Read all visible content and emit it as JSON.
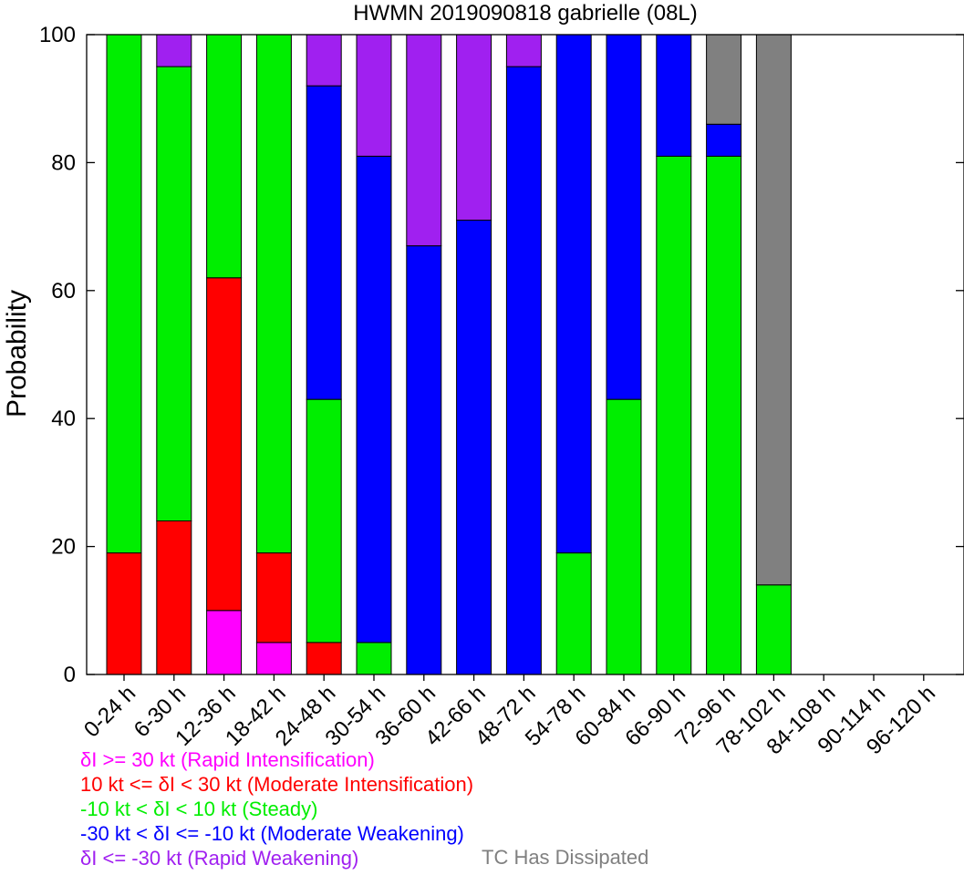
{
  "chart_data": {
    "type": "bar",
    "stacked": true,
    "title": "HWMN 2019090818 gabrielle (08L)",
    "xlabel": "",
    "ylabel": "Probability",
    "ylim": [
      0,
      100
    ],
    "yticks": [
      0,
      20,
      40,
      60,
      80,
      100
    ],
    "grid": false,
    "categories": [
      "0-24 h",
      "6-30 h",
      "12-36 h",
      "18-42 h",
      "24-48 h",
      "30-54 h",
      "36-60 h",
      "42-66 h",
      "48-72 h",
      "54-78 h",
      "60-84 h",
      "66-90 h",
      "72-96 h",
      "78-102 h",
      "84-108 h",
      "90-114 h",
      "96-120 h"
    ],
    "series": [
      {
        "name": "δI >= 30 kt (Rapid Intensification)",
        "color": "#ff00ff",
        "values": [
          0,
          0,
          10,
          5,
          0,
          0,
          0,
          0,
          0,
          0,
          0,
          0,
          0,
          0,
          0,
          0,
          0
        ]
      },
      {
        "name": "10 kt <= δI < 30 kt (Moderate Intensification)",
        "color": "#ff0000",
        "values": [
          19,
          24,
          52,
          14,
          5,
          0,
          0,
          0,
          0,
          0,
          0,
          0,
          0,
          0,
          0,
          0,
          0
        ]
      },
      {
        "name": "-10 kt < δI < 10 kt (Steady)",
        "color": "#00ee00",
        "values": [
          81,
          71,
          38,
          81,
          38,
          5,
          0,
          0,
          0,
          19,
          43,
          81,
          81,
          14,
          0,
          0,
          0
        ]
      },
      {
        "name": "-30 kt < δI <= -10 kt (Moderate Weakening)",
        "color": "#0000ff",
        "values": [
          0,
          0,
          0,
          0,
          49,
          76,
          67,
          71,
          95,
          81,
          57,
          19,
          5,
          0,
          0,
          0,
          0
        ]
      },
      {
        "name": "δI <= -30 kt (Rapid Weakening)",
        "color": "#a020f0",
        "values": [
          0,
          5,
          0,
          0,
          8,
          19,
          33,
          29,
          5,
          0,
          0,
          0,
          0,
          0,
          0,
          0,
          0
        ]
      },
      {
        "name": "TC Has Dissipated",
        "color": "#808080",
        "values": [
          0,
          0,
          0,
          0,
          0,
          0,
          0,
          0,
          0,
          0,
          0,
          0,
          14,
          86,
          0,
          0,
          0
        ]
      }
    ]
  }
}
